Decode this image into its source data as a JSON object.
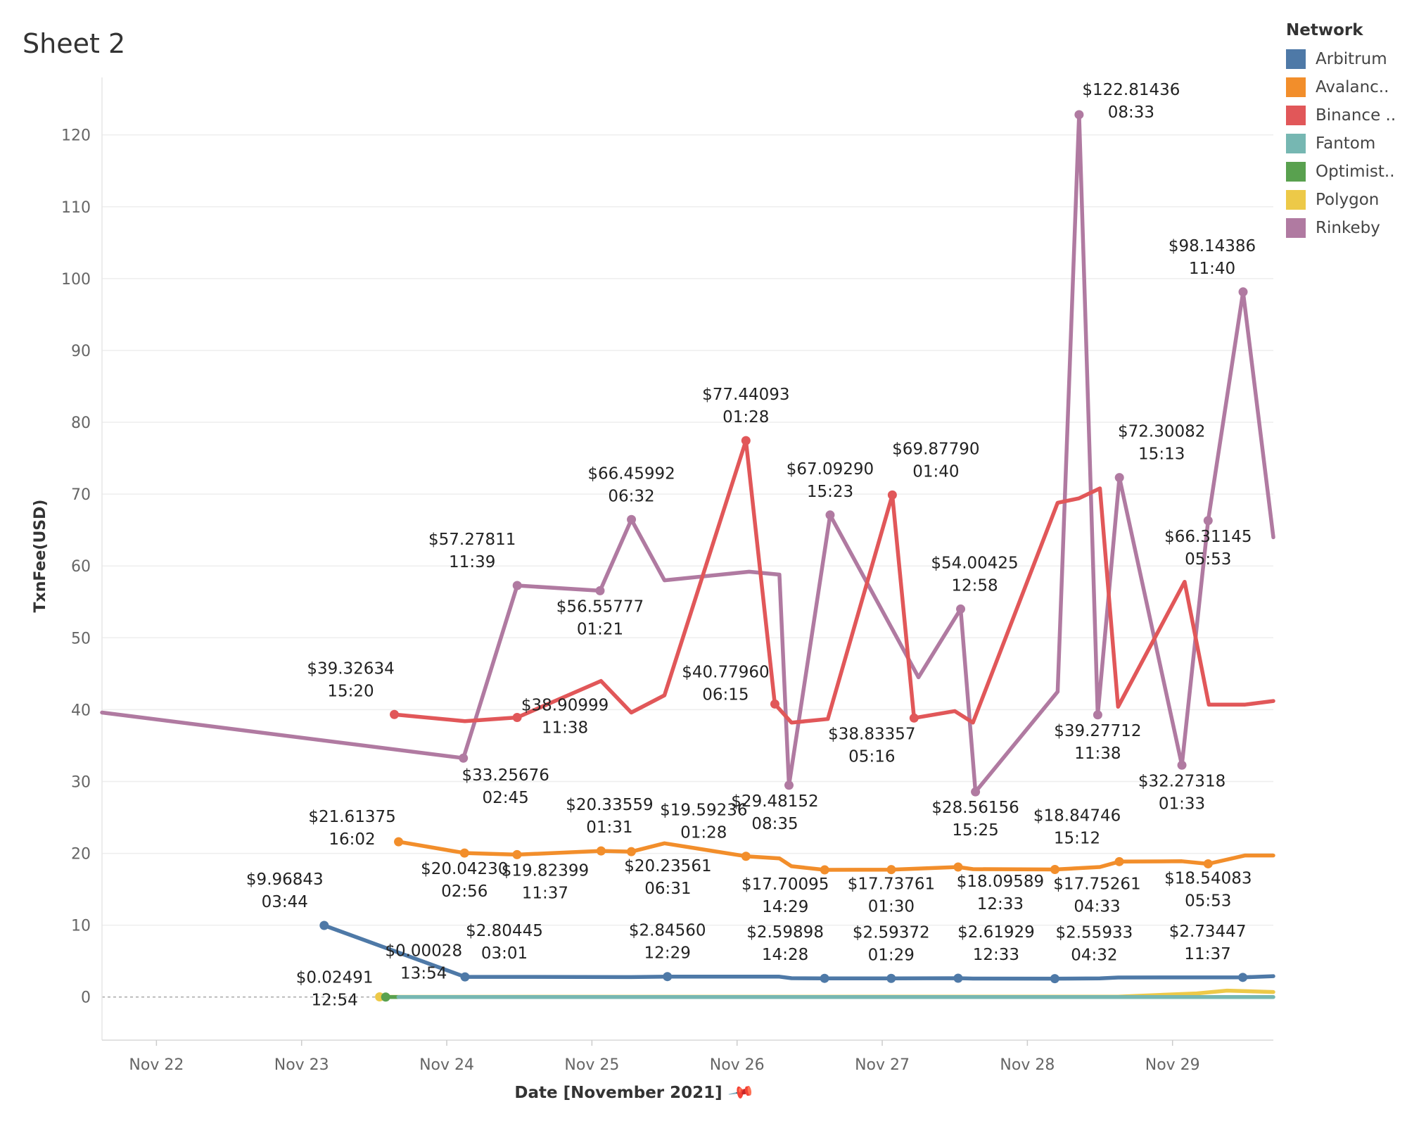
{
  "sheet_title": "Sheet 2",
  "legend": {
    "title": "Network",
    "items": [
      {
        "label": "Arbitrum",
        "color": "#4e79a7"
      },
      {
        "label": "Avalanc..",
        "color": "#f28e2b"
      },
      {
        "label": "Binance ..",
        "color": "#e15759"
      },
      {
        "label": "Fantom",
        "color": "#76b7b2"
      },
      {
        "label": "Optimist..",
        "color": "#59a14f"
      },
      {
        "label": "Polygon",
        "color": "#edc948"
      },
      {
        "label": "Rinkeby",
        "color": "#b07aa1"
      }
    ]
  },
  "x_axis_title": "Date [November 2021]",
  "chart_data": {
    "type": "line",
    "xlabel": "Date [November 2021]",
    "ylabel": "TxnFee(USD)",
    "ylim": [
      -6,
      128
    ],
    "xlim": [
      "2021-11-21 15:00",
      "2021-11-29 16:40"
    ],
    "y_ticks": [
      0,
      10,
      20,
      30,
      40,
      50,
      60,
      70,
      80,
      90,
      100,
      110,
      120
    ],
    "x_ticks": [
      {
        "label": "Nov 22",
        "date": "2021-11-22 00:00"
      },
      {
        "label": "Nov 23",
        "date": "2021-11-23 00:00"
      },
      {
        "label": "Nov 24",
        "date": "2021-11-24 00:00"
      },
      {
        "label": "Nov 25",
        "date": "2021-11-25 00:00"
      },
      {
        "label": "Nov 26",
        "date": "2021-11-26 00:00"
      },
      {
        "label": "Nov 27",
        "date": "2021-11-27 00:00"
      },
      {
        "label": "Nov 28",
        "date": "2021-11-28 00:00"
      },
      {
        "label": "Nov 29",
        "date": "2021-11-29 00:00"
      }
    ],
    "grid": true,
    "legend_position": "right",
    "series": [
      {
        "name": "Rinkeby",
        "color": "#b07aa1",
        "points": [
          {
            "x": "2021-11-21 15:00",
            "y": 39.6
          },
          {
            "x": "2021-11-24 02:45",
            "y": 33.25676,
            "label": [
              "$33.25676",
              "02:45"
            ]
          },
          {
            "x": "2021-11-24 11:39",
            "y": 57.27811,
            "label": [
              "$57.27811",
              "11:39"
            ]
          },
          {
            "x": "2021-11-25 01:21",
            "y": 56.55777,
            "label": [
              "$56.55777",
              "01:21"
            ]
          },
          {
            "x": "2021-11-25 06:32",
            "y": 66.45992,
            "label": [
              "$66.45992",
              "06:32"
            ]
          },
          {
            "x": "2021-11-25 12:00",
            "y": 58.0
          },
          {
            "x": "2021-11-26 02:00",
            "y": 59.2
          },
          {
            "x": "2021-11-26 07:00",
            "y": 58.8
          },
          {
            "x": "2021-11-26 08:35",
            "y": 29.48152,
            "label": [
              "$29.48152",
              "08:35"
            ]
          },
          {
            "x": "2021-11-26 15:23",
            "y": 67.0929,
            "label": [
              "$67.09290",
              "15:23"
            ]
          },
          {
            "x": "2021-11-27 06:00",
            "y": 44.5
          },
          {
            "x": "2021-11-27 12:58",
            "y": 54.00425,
            "label": [
              "$54.00425",
              "12:58"
            ]
          },
          {
            "x": "2021-11-27 15:25",
            "y": 28.56156,
            "label": [
              "$28.56156",
              "15:25"
            ]
          },
          {
            "x": "2021-11-28 05:00",
            "y": 42.5
          },
          {
            "x": "2021-11-28 08:33",
            "y": 122.81436,
            "label": [
              "$122.81436",
              "08:33"
            ]
          },
          {
            "x": "2021-11-28 11:38",
            "y": 39.27712,
            "label": [
              "$39.27712",
              "11:38"
            ]
          },
          {
            "x": "2021-11-28 15:13",
            "y": 72.30082,
            "label": [
              "$72.30082",
              "15:13"
            ]
          },
          {
            "x": "2021-11-29 01:33",
            "y": 32.27318,
            "label": [
              "$32.27318",
              "01:33"
            ]
          },
          {
            "x": "2021-11-29 05:53",
            "y": 66.31145,
            "label": [
              "$66.31145",
              "05:53"
            ]
          },
          {
            "x": "2021-11-29 11:40",
            "y": 98.14386,
            "label": [
              "$98.14386",
              "11:40"
            ]
          },
          {
            "x": "2021-11-29 16:40",
            "y": 64.0
          }
        ]
      },
      {
        "name": "Binance ..",
        "color": "#e15759",
        "points": [
          {
            "x": "2021-11-23 15:20",
            "y": 39.32634,
            "label": [
              "$39.32634",
              "15:20"
            ]
          },
          {
            "x": "2021-11-24 03:00",
            "y": 38.4
          },
          {
            "x": "2021-11-24 11:38",
            "y": 38.90999,
            "label": [
              "$38.90999",
              "11:38"
            ]
          },
          {
            "x": "2021-11-25 01:30",
            "y": 44.0
          },
          {
            "x": "2021-11-25 06:30",
            "y": 39.6
          },
          {
            "x": "2021-11-25 12:00",
            "y": 42.0
          },
          {
            "x": "2021-11-26 01:28",
            "y": 77.44093,
            "label": [
              "$77.44093",
              "01:28"
            ]
          },
          {
            "x": "2021-11-26 06:15",
            "y": 40.7796,
            "label": [
              "$40.77960",
              "06:15"
            ]
          },
          {
            "x": "2021-11-26 09:00",
            "y": 38.2
          },
          {
            "x": "2021-11-26 15:00",
            "y": 38.7
          },
          {
            "x": "2021-11-27 01:40",
            "y": 69.8779,
            "label": [
              "$69.87790",
              "01:40"
            ]
          },
          {
            "x": "2021-11-27 05:16",
            "y": 38.83357,
            "label": [
              "$38.83357",
              "05:16"
            ]
          },
          {
            "x": "2021-11-27 12:00",
            "y": 39.8
          },
          {
            "x": "2021-11-27 15:00",
            "y": 38.2
          },
          {
            "x": "2021-11-28 05:00",
            "y": 68.8
          },
          {
            "x": "2021-11-28 08:30",
            "y": 69.4
          },
          {
            "x": "2021-11-28 12:00",
            "y": 70.8
          },
          {
            "x": "2021-11-28 15:00",
            "y": 40.4
          },
          {
            "x": "2021-11-29 02:00",
            "y": 57.8
          },
          {
            "x": "2021-11-29 06:00",
            "y": 40.7
          },
          {
            "x": "2021-11-29 12:00",
            "y": 40.7
          },
          {
            "x": "2021-11-29 16:40",
            "y": 41.2
          }
        ]
      },
      {
        "name": "Avalanc..",
        "color": "#f28e2b",
        "points": [
          {
            "x": "2021-11-23 16:02",
            "y": 21.61375,
            "label": [
              "$21.61375",
              "16:02"
            ]
          },
          {
            "x": "2021-11-24 02:56",
            "y": 20.0423,
            "label": [
              "$20.04230",
              "02:56"
            ]
          },
          {
            "x": "2021-11-24 11:37",
            "y": 19.82399,
            "label": [
              "$19.82399",
              "11:37"
            ]
          },
          {
            "x": "2021-11-25 01:31",
            "y": 20.33559,
            "label": [
              "$20.33559",
              "01:31"
            ]
          },
          {
            "x": "2021-11-25 06:31",
            "y": 20.23561,
            "label": [
              "$20.23561",
              "06:31"
            ]
          },
          {
            "x": "2021-11-25 12:00",
            "y": 21.4
          },
          {
            "x": "2021-11-26 01:28",
            "y": 19.59236,
            "label": [
              "$19.59236",
              "01:28"
            ]
          },
          {
            "x": "2021-11-26 07:00",
            "y": 19.3
          },
          {
            "x": "2021-11-26 09:00",
            "y": 18.2
          },
          {
            "x": "2021-11-26 14:29",
            "y": 17.70095,
            "label": [
              "$17.70095",
              "14:29"
            ]
          },
          {
            "x": "2021-11-27 01:30",
            "y": 17.73761,
            "label": [
              "$17.73761",
              "01:30"
            ]
          },
          {
            "x": "2021-11-27 12:33",
            "y": 18.09589,
            "label": [
              "$18.09589",
              "12:33"
            ]
          },
          {
            "x": "2021-11-27 15:00",
            "y": 17.8
          },
          {
            "x": "2021-11-28 04:33",
            "y": 17.75261,
            "label": [
              "$17.75261",
              "04:33"
            ]
          },
          {
            "x": "2021-11-28 12:00",
            "y": 18.1
          },
          {
            "x": "2021-11-28 15:12",
            "y": 18.84746,
            "label": [
              "$18.84746",
              "15:12"
            ]
          },
          {
            "x": "2021-11-29 01:33",
            "y": 18.9
          },
          {
            "x": "2021-11-29 05:53",
            "y": 18.54083,
            "label": [
              "$18.54083",
              "05:53"
            ]
          },
          {
            "x": "2021-11-29 12:00",
            "y": 19.7
          },
          {
            "x": "2021-11-29 16:40",
            "y": 19.7
          }
        ]
      },
      {
        "name": "Arbitrum",
        "color": "#4e79a7",
        "points": [
          {
            "x": "2021-11-23 03:44",
            "y": 9.96843,
            "label": [
              "$9.96843",
              "03:44"
            ]
          },
          {
            "x": "2021-11-24 03:01",
            "y": 2.80445,
            "label": [
              "$2.80445",
              "03:01"
            ]
          },
          {
            "x": "2021-11-24 12:00",
            "y": 2.81
          },
          {
            "x": "2021-11-25 06:30",
            "y": 2.78
          },
          {
            "x": "2021-11-25 12:29",
            "y": 2.8456,
            "label": [
              "$2.84560",
              "12:29"
            ]
          },
          {
            "x": "2021-11-26 07:00",
            "y": 2.84
          },
          {
            "x": "2021-11-26 09:00",
            "y": 2.62
          },
          {
            "x": "2021-11-26 14:28",
            "y": 2.59898,
            "label": [
              "$2.59898",
              "14:28"
            ]
          },
          {
            "x": "2021-11-27 01:29",
            "y": 2.59372,
            "label": [
              "$2.59372",
              "01:29"
            ]
          },
          {
            "x": "2021-11-27 12:33",
            "y": 2.61929,
            "label": [
              "$2.61929",
              "12:33"
            ]
          },
          {
            "x": "2021-11-27 15:00",
            "y": 2.57
          },
          {
            "x": "2021-11-28 04:32",
            "y": 2.55933,
            "label": [
              "$2.55933",
              "04:32"
            ]
          },
          {
            "x": "2021-11-28 12:00",
            "y": 2.6
          },
          {
            "x": "2021-11-28 15:00",
            "y": 2.72
          },
          {
            "x": "2021-11-29 11:37",
            "y": 2.73447,
            "label": [
              "$2.73447",
              "11:37"
            ]
          },
          {
            "x": "2021-11-29 16:40",
            "y": 2.9
          }
        ]
      },
      {
        "name": "Polygon",
        "color": "#edc948",
        "points": [
          {
            "x": "2021-11-23 12:54",
            "y": 0.02491,
            "label": [
              "$0.02491",
              "12:54"
            ]
          },
          {
            "x": "2021-11-28 15:00",
            "y": 0.05
          },
          {
            "x": "2021-11-29 04:00",
            "y": 0.5
          },
          {
            "x": "2021-11-29 09:00",
            "y": 0.9
          },
          {
            "x": "2021-11-29 16:40",
            "y": 0.7
          }
        ]
      },
      {
        "name": "Optimist..",
        "color": "#59a14f",
        "points": [
          {
            "x": "2021-11-23 13:54",
            "y": 0.00028,
            "label": [
              "$0.00028",
              "13:54"
            ]
          },
          {
            "x": "2021-11-23 16:00",
            "y": 0.00028
          }
        ]
      },
      {
        "name": "Fantom",
        "color": "#76b7b2",
        "points": [
          {
            "x": "2021-11-23 16:00",
            "y": 0.0
          },
          {
            "x": "2021-11-29 16:40",
            "y": 0.0
          }
        ]
      }
    ]
  }
}
